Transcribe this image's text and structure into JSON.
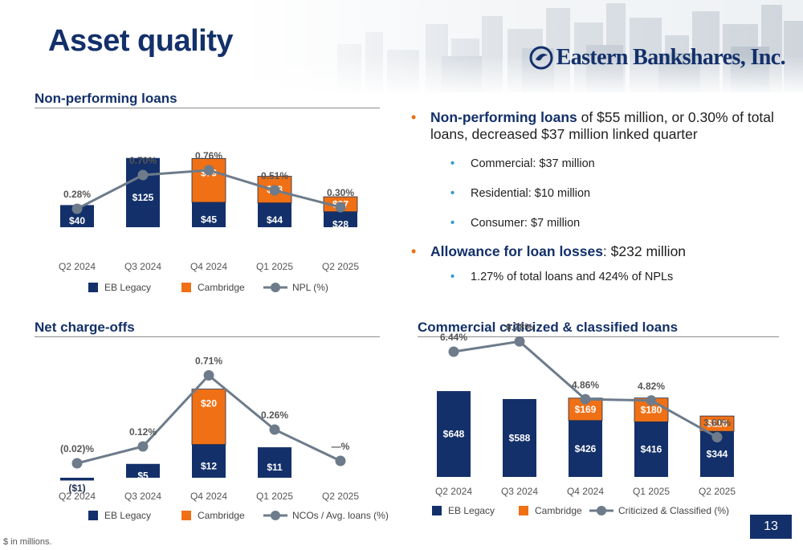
{
  "header": {
    "title": "Asset quality",
    "brand": "Eastern Bankshares, Inc."
  },
  "footnote": "$ in millions.",
  "page_number": "13",
  "colors": {
    "navy": "#13306a",
    "orange": "#f07015",
    "gray_line": "#6d7b8a",
    "bullet_blue": "#3399cc"
  },
  "bullets": [
    {
      "lead": "Non-performing loans",
      "rest": " of $55 million, or 0.30% of total loans, decreased $37 million linked quarter",
      "subs": [
        "Commercial: $37 million",
        "Residential: $10 million",
        "Consumer: $7 million"
      ]
    },
    {
      "lead": "Allowance for loan losses",
      "rest": ": $232 million",
      "subs": [
        "1.27% of total loans and 424% of NPLs"
      ]
    }
  ],
  "chart_data": [
    {
      "id": "npl",
      "type": "bar",
      "title": "Non-performing loans",
      "categories": [
        "Q2 2024",
        "Q3 2024",
        "Q4 2024",
        "Q1 2025",
        "Q2 2025"
      ],
      "series": [
        {
          "name": "EB Legacy",
          "values": [
            40,
            125,
            45,
            44,
            28
          ],
          "labels": [
            "$40",
            "$125",
            "$45",
            "$44",
            "$28"
          ]
        },
        {
          "name": "Cambridge",
          "values": [
            null,
            null,
            79,
            48,
            27
          ],
          "labels": [
            "",
            "",
            "$79",
            "$48",
            "$27"
          ]
        }
      ],
      "line": {
        "name": "NPL (%)",
        "values": [
          0.28,
          0.7,
          0.76,
          0.51,
          0.3
        ],
        "labels": [
          "0.28%",
          "0.70%",
          "0.76%",
          "0.51%",
          "0.30%"
        ]
      },
      "stacked": true
    },
    {
      "id": "nco",
      "type": "bar",
      "title": "Net charge-offs",
      "categories": [
        "Q2 2024",
        "Q3 2024",
        "Q4 2024",
        "Q1 2025",
        "Q2 2025"
      ],
      "series": [
        {
          "name": "EB Legacy",
          "values": [
            -1,
            5,
            12,
            11,
            0
          ],
          "labels": [
            "($1)",
            "$5",
            "$12",
            "$11",
            ""
          ]
        },
        {
          "name": "Cambridge",
          "values": [
            null,
            null,
            20,
            null,
            null
          ],
          "labels": [
            "",
            "",
            "$20",
            "",
            ""
          ]
        }
      ],
      "line": {
        "name": "NCOs / Avg. loans (%)",
        "values": [
          -0.02,
          0.12,
          0.71,
          0.26,
          0
        ],
        "labels": [
          "(0.02)%",
          "0.12%",
          "0.71%",
          "0.26%",
          "—%"
        ]
      },
      "stacked": true
    },
    {
      "id": "cc",
      "type": "bar",
      "title": "Commercial criticized & classified loans",
      "categories": [
        "Q2 2024",
        "Q3 2024",
        "Q4 2024",
        "Q1 2025",
        "Q2 2025"
      ],
      "series": [
        {
          "name": "EB Legacy",
          "values": [
            648,
            588,
            426,
            416,
            344
          ],
          "labels": [
            "$648",
            "$588",
            "$426",
            "$416",
            "$344"
          ]
        },
        {
          "name": "Cambridge",
          "values": [
            null,
            null,
            169,
            180,
            116
          ],
          "labels": [
            "",
            "",
            "$169",
            "$180",
            "$116"
          ]
        }
      ],
      "line": {
        "name": "Criticized & Classified (%)",
        "values": [
          6.44,
          6.78,
          4.86,
          4.82,
          3.6
        ],
        "labels": [
          "6.44%",
          "6.78%",
          "4.86%",
          "4.82%",
          "3.60%"
        ]
      },
      "stacked": true
    }
  ]
}
